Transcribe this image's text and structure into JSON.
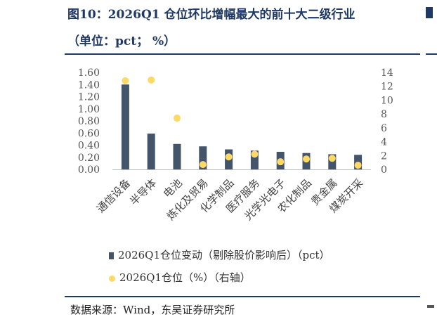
{
  "header": {
    "title": "图10：2026Q1 仓位环比增幅最大的前十大二级行业",
    "subtitle": "（单位：pct； %）"
  },
  "footer": {
    "source": "数据来源：Wind，东吴证券研究所"
  },
  "colors": {
    "bar": "#44546a",
    "dot": "#ffd966",
    "accent": "#1f3864"
  },
  "chart_data": {
    "type": "bar",
    "categories": [
      "通信设备",
      "半导体",
      "电池",
      "炼化及贸易",
      "化学制品",
      "医疗服务",
      "光学光电子",
      "农化制品",
      "贵金属",
      "煤炭开采"
    ],
    "series": [
      {
        "name": "2026Q1仓位变动（剔除股价影响后）（pct）",
        "type": "bar",
        "axis": "left",
        "values": [
          1.4,
          0.59,
          0.42,
          0.38,
          0.33,
          0.31,
          0.29,
          0.27,
          0.25,
          0.24
        ]
      },
      {
        "name": "2026Q1仓位（%）（右轴）",
        "type": "scatter",
        "axis": "right",
        "values": [
          12.8,
          12.9,
          7.4,
          0.7,
          1.8,
          2.2,
          1.1,
          1.5,
          1.6,
          0.6
        ]
      }
    ],
    "y_left": {
      "range": [
        0,
        1.6
      ],
      "ticks": [
        "0.00",
        "0.20",
        "0.40",
        "0.60",
        "0.80",
        "1.00",
        "1.20",
        "1.40",
        "1.60"
      ]
    },
    "y_right": {
      "range": [
        0,
        14
      ],
      "ticks": [
        "0",
        "2",
        "4",
        "6",
        "8",
        "10",
        "12",
        "14"
      ]
    },
    "grid": false,
    "legend_position": "bottom"
  }
}
